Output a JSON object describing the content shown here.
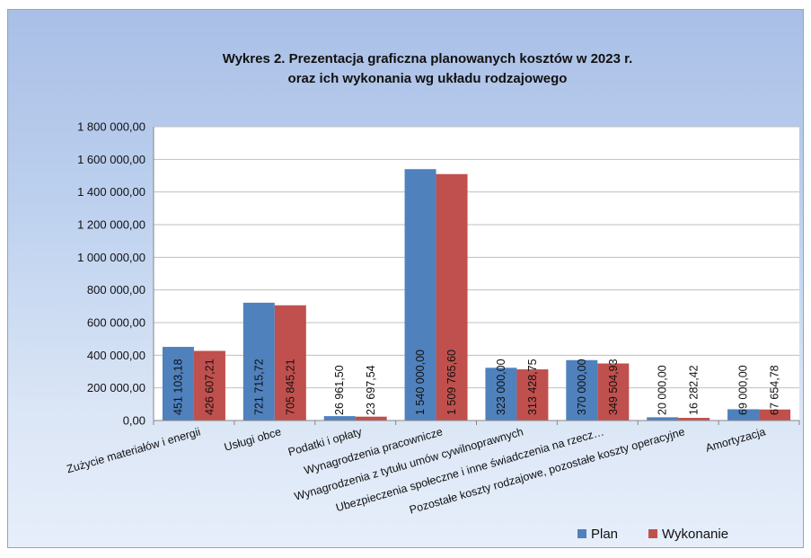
{
  "chart_data": {
    "type": "bar",
    "title_lines": [
      "Wykres 2. Prezentacja graficzna planowanych kosztów w 2023 r.",
      "oraz ich wykonania wg układu rodzajowego"
    ],
    "categories": [
      "Zużycie materiałów i energii",
      "Usługi obce",
      "Podatki i opłaty",
      "Wynagrodzenia pracownicze",
      "Wynagrodzenia z tytułu umów cywilnoprawnych",
      "Ubezpieczenia społeczne i inne świadczenia na rzecz…",
      "Pozostałe koszty rodzajowe, pozostałe koszty operacyjne",
      "Amortyzacja"
    ],
    "series": [
      {
        "name": "Plan",
        "color": "#4f81bd",
        "values": [
          451103.18,
          721715.72,
          26961.5,
          1540000.0,
          323000.0,
          370000.0,
          20000.0,
          69000.0
        ],
        "labels": [
          "451 103,18",
          "721 715,72",
          "26 961,50",
          "1 540 000,00",
          "323 000,00",
          "370 000,00",
          "20 000,00",
          "69 000,00"
        ]
      },
      {
        "name": "Wykonanie",
        "color": "#c0504d",
        "values": [
          426607.21,
          705845.21,
          23697.54,
          1509765.6,
          313428.75,
          349504.93,
          16282.42,
          67654.78
        ],
        "labels": [
          "426 607,21",
          "705 845,21",
          "23 697,54",
          "1 509 765,60",
          "313 428,75",
          "349 504,93",
          "16 282,42",
          "67 654,78"
        ]
      }
    ],
    "ylim": [
      0,
      1800000
    ],
    "yticks": [
      0,
      200000,
      400000,
      600000,
      800000,
      1000000,
      1200000,
      1400000,
      1600000,
      1800000
    ],
    "ytick_labels": [
      "0,00",
      "200 000,00",
      "400 000,00",
      "600 000,00",
      "800 000,00",
      "1 000 000,00",
      "1 200 000,00",
      "1 400 000,00",
      "1 600 000,00",
      "1 800 000,00"
    ],
    "grid": true,
    "legend": "bottom-right"
  }
}
